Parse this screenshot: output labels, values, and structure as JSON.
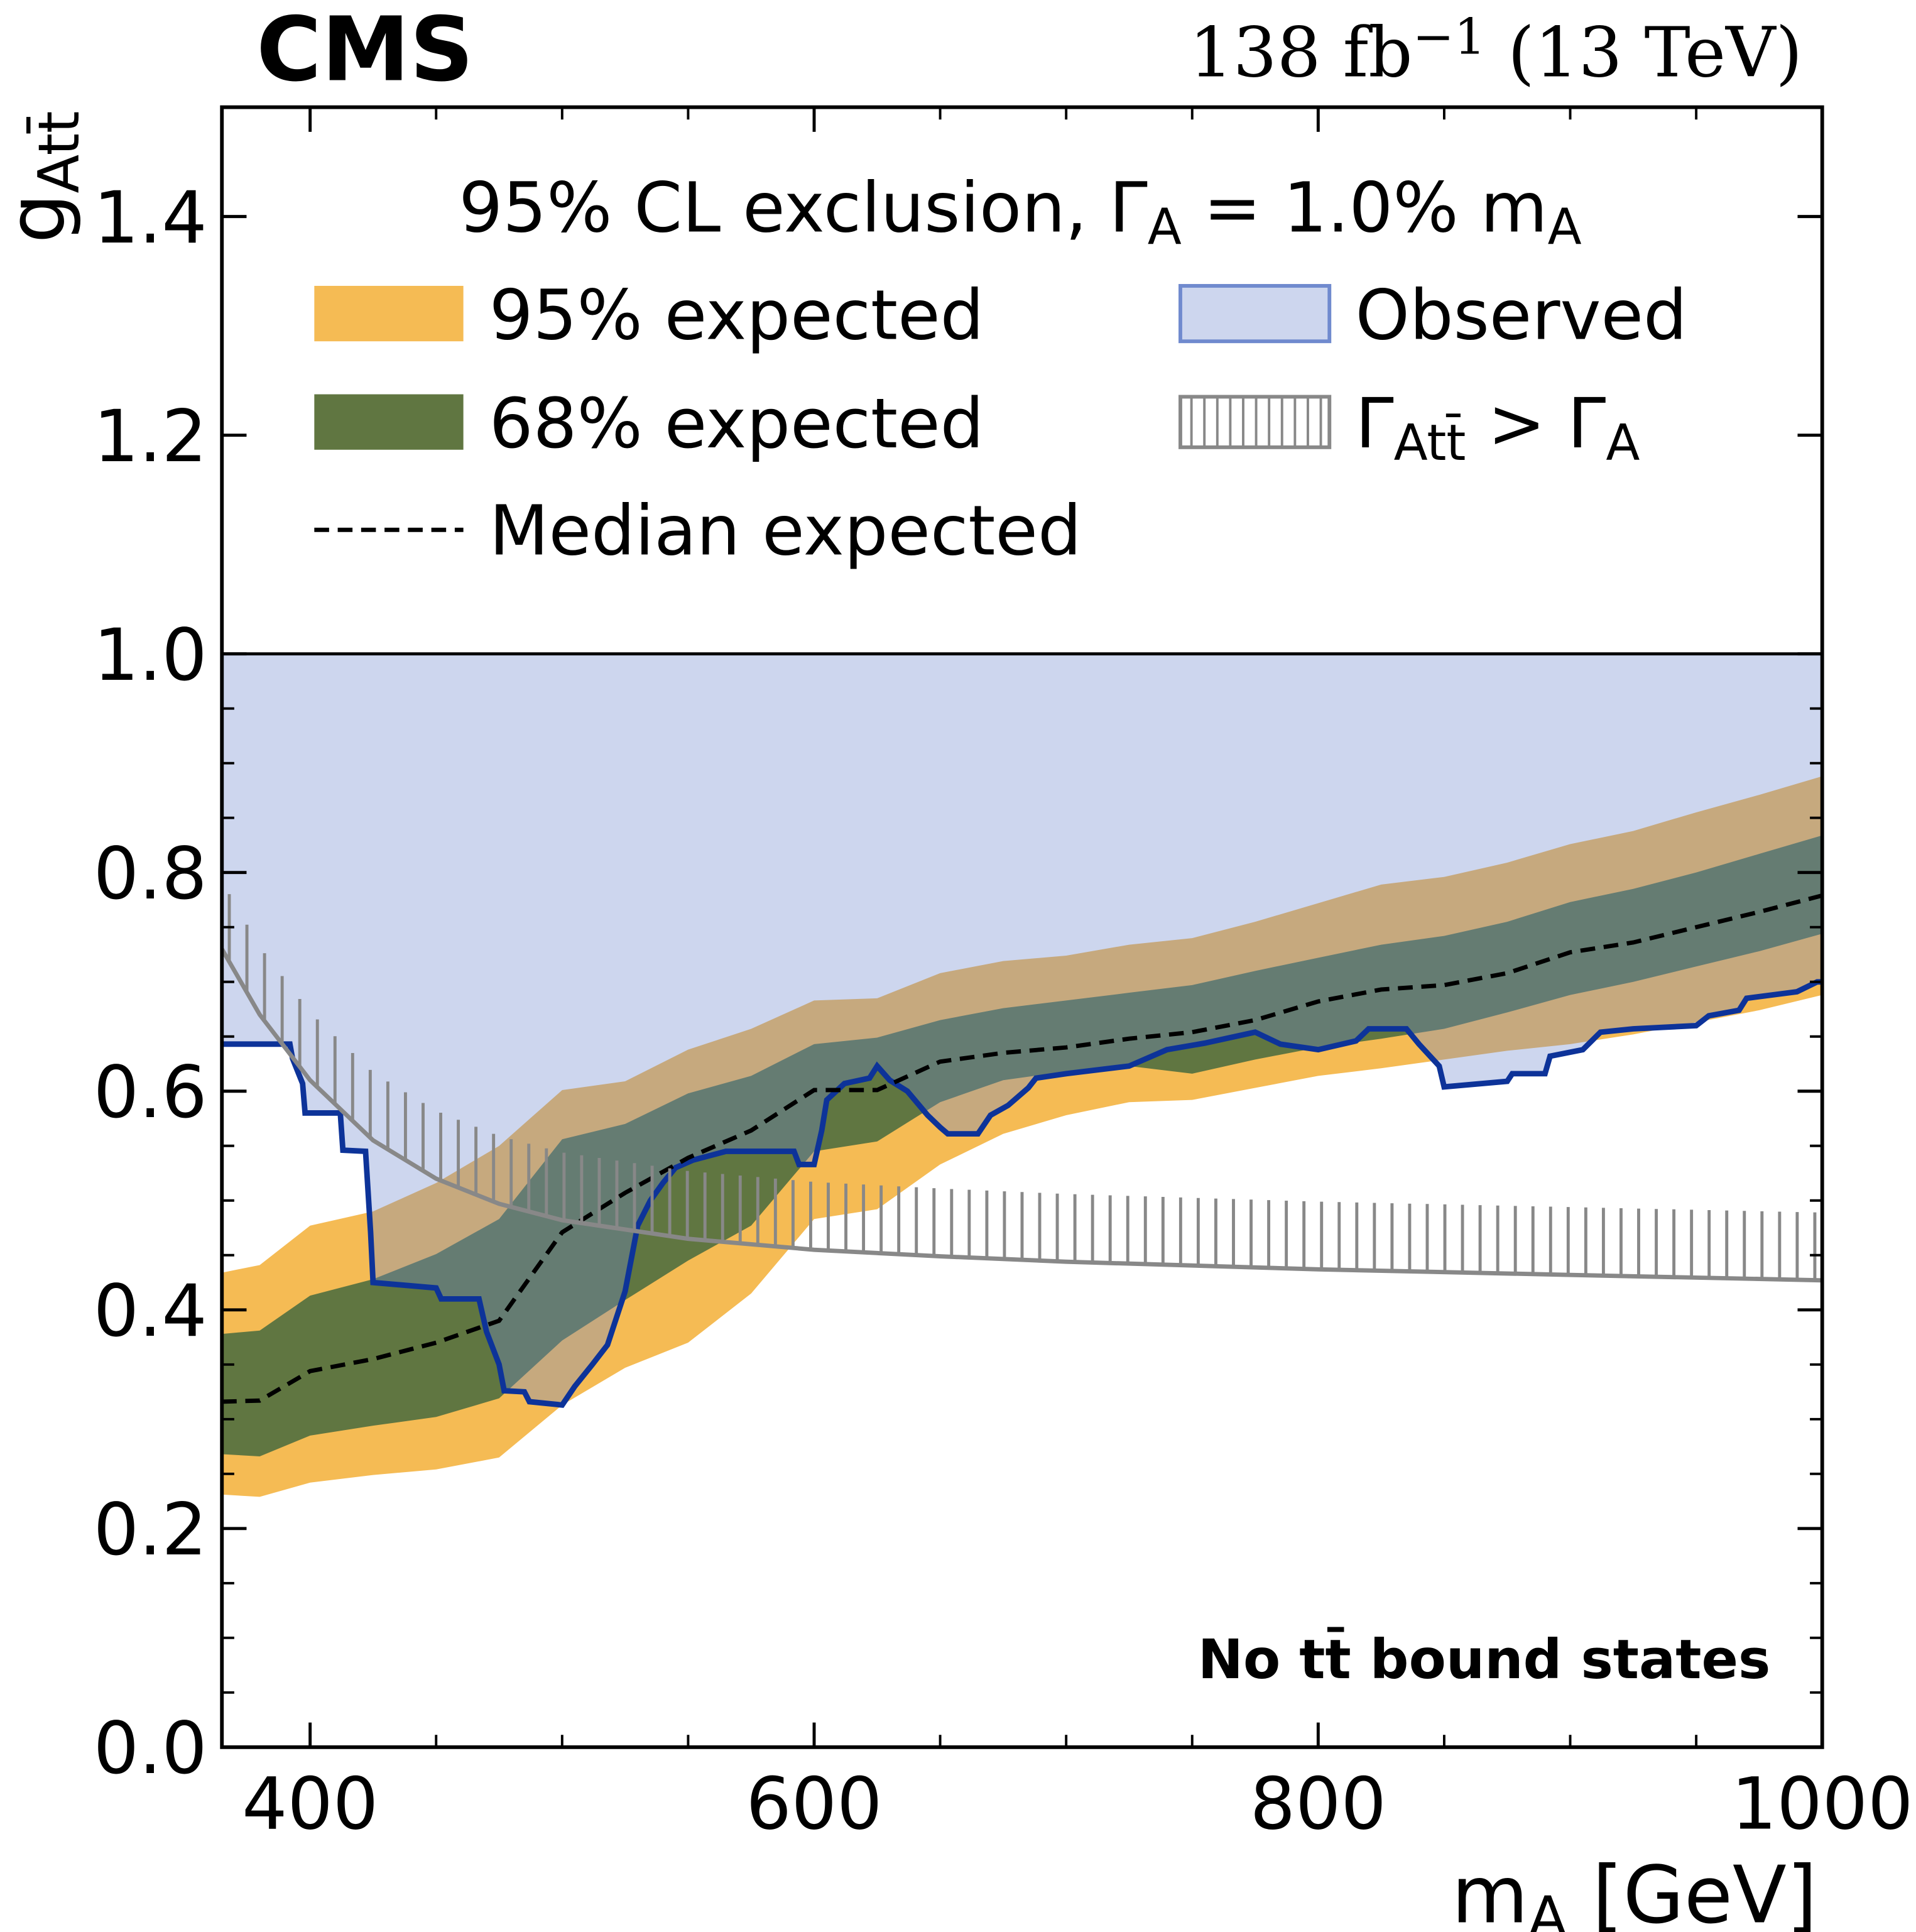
{
  "chart_data": {
    "type": "limit",
    "experiment": "CMS",
    "lumi": [
      "138 fb",
      "−1",
      " (13 TeV)"
    ],
    "legend_title": [
      "95% CL exclusion, Γ",
      "A",
      " =  1.0% m",
      "A"
    ],
    "annotation": "No tt̄ bound states",
    "x_label": [
      "m",
      "A",
      " [GeV]"
    ],
    "y_label": [
      "g",
      "Att̄"
    ],
    "xlim": [
      365,
      1000
    ],
    "ylim": [
      0,
      1.5
    ],
    "xticks": [
      400,
      600,
      800,
      1000
    ],
    "xminor_ticks": [
      450,
      500,
      550,
      650,
      700,
      750,
      850,
      900,
      950
    ],
    "yticks": [
      {
        "value": 0,
        "label": "0.0"
      },
      0.2,
      0.4,
      0.6,
      0.8,
      {
        "value": 1,
        "label": "1.0"
      },
      1.2,
      1.4
    ],
    "yminor_ticks": [
      0.05,
      0.1,
      0.15,
      0.25,
      0.3,
      0.35,
      0.45,
      0.5,
      0.55,
      0.65,
      0.7,
      0.75,
      0.85,
      0.9,
      0.95
    ],
    "hline": 1,
    "x": [
      365,
      380,
      400,
      425,
      450,
      475,
      500,
      525,
      550,
      575,
      600,
      625,
      650,
      675,
      700,
      725,
      750,
      775,
      800,
      825,
      850,
      875,
      900,
      925,
      950,
      975,
      1000
    ],
    "series": [
      {
        "name": [
          "95% expected"
        ],
        "kind": "band",
        "color": "#f5bb54",
        "lower": [
          0.231,
          0.229,
          0.242,
          0.249,
          0.254,
          0.265,
          0.313,
          0.347,
          0.37,
          0.415,
          0.483,
          0.492,
          0.533,
          0.561,
          0.578,
          0.59,
          0.592,
          0.603,
          0.614,
          0.621,
          0.629,
          0.637,
          0.643,
          0.652,
          0.663,
          0.674,
          0.688
        ],
        "upper": [
          0.434,
          0.441,
          0.477,
          0.49,
          0.516,
          0.55,
          0.601,
          0.609,
          0.638,
          0.657,
          0.683,
          0.685,
          0.708,
          0.719,
          0.724,
          0.734,
          0.74,
          0.755,
          0.772,
          0.789,
          0.796,
          0.809,
          0.826,
          0.838,
          0.855,
          0.871,
          0.888
        ]
      },
      {
        "name": [
          "68% expected"
        ],
        "kind": "band",
        "color": "#607641",
        "lower": [
          0.268,
          0.266,
          0.285,
          0.294,
          0.302,
          0.319,
          0.372,
          0.409,
          0.445,
          0.477,
          0.545,
          0.554,
          0.59,
          0.61,
          0.618,
          0.623,
          0.616,
          0.629,
          0.64,
          0.648,
          0.657,
          0.672,
          0.688,
          0.7,
          0.714,
          0.728,
          0.744
        ],
        "upper": [
          0.378,
          0.381,
          0.413,
          0.428,
          0.451,
          0.483,
          0.556,
          0.57,
          0.598,
          0.614,
          0.643,
          0.649,
          0.665,
          0.676,
          0.683,
          0.69,
          0.697,
          0.71,
          0.722,
          0.734,
          0.742,
          0.755,
          0.773,
          0.785,
          0.8,
          0.817,
          0.834
        ]
      },
      {
        "name": [
          "Median expected"
        ],
        "kind": "line",
        "color": "#000000",
        "values": [
          0.316,
          0.317,
          0.344,
          0.355,
          0.37,
          0.39,
          0.471,
          0.507,
          0.539,
          0.564,
          0.601,
          0.601,
          0.627,
          0.635,
          0.64,
          0.648,
          0.654,
          0.665,
          0.682,
          0.693,
          0.697,
          0.708,
          0.727,
          0.736,
          0.75,
          0.764,
          0.779
        ]
      },
      {
        "name": [
          "Observed"
        ],
        "kind": "observed",
        "color": "#0d3399",
        "fill": "#708ace",
        "x": [
          365,
          392,
          393,
          397,
          398,
          412,
          413,
          422,
          424,
          425,
          450,
          452,
          467,
          470,
          475,
          477,
          485,
          487,
          500,
          505,
          512,
          518,
          525,
          530,
          535,
          540,
          545,
          552,
          565,
          592,
          594,
          600,
          603,
          605,
          612,
          622,
          625,
          630,
          637,
          645,
          650,
          653,
          665,
          670,
          677,
          685,
          688,
          700,
          725,
          740,
          755,
          775,
          785,
          800,
          815,
          820,
          835,
          840,
          848,
          850,
          875,
          877,
          890,
          892,
          905,
          912,
          925,
          950,
          955,
          967,
          970,
          990,
          998,
          1000
        ],
        "values": [
          0.643,
          0.643,
          0.63,
          0.607,
          0.58,
          0.58,
          0.546,
          0.545,
          0.471,
          0.425,
          0.42,
          0.41,
          0.41,
          0.38,
          0.35,
          0.326,
          0.325,
          0.316,
          0.313,
          0.33,
          0.35,
          0.368,
          0.417,
          0.477,
          0.5,
          0.516,
          0.53,
          0.537,
          0.545,
          0.545,
          0.533,
          0.533,
          0.564,
          0.592,
          0.607,
          0.612,
          0.623,
          0.61,
          0.6,
          0.578,
          0.567,
          0.561,
          0.561,
          0.578,
          0.587,
          0.603,
          0.612,
          0.616,
          0.623,
          0.638,
          0.644,
          0.654,
          0.643,
          0.638,
          0.646,
          0.657,
          0.657,
          0.643,
          0.623,
          0.604,
          0.609,
          0.616,
          0.616,
          0.632,
          0.638,
          0.654,
          0.657,
          0.66,
          0.669,
          0.674,
          0.685,
          0.691,
          0.7,
          0.7
        ]
      },
      {
        "name": [
          "Γ",
          "Att̄",
          " > Γ",
          "A"
        ],
        "kind": "hatch",
        "color": "#888888",
        "x": [
          365,
          380,
          400,
          425,
          450,
          475,
          500,
          550,
          600,
          650,
          700,
          800,
          900,
          1000
        ],
        "values": [
          0.73,
          0.67,
          0.61,
          0.555,
          0.52,
          0.497,
          0.482,
          0.465,
          0.455,
          0.449,
          0.444,
          0.437,
          0.432,
          0.427
        ]
      }
    ]
  }
}
